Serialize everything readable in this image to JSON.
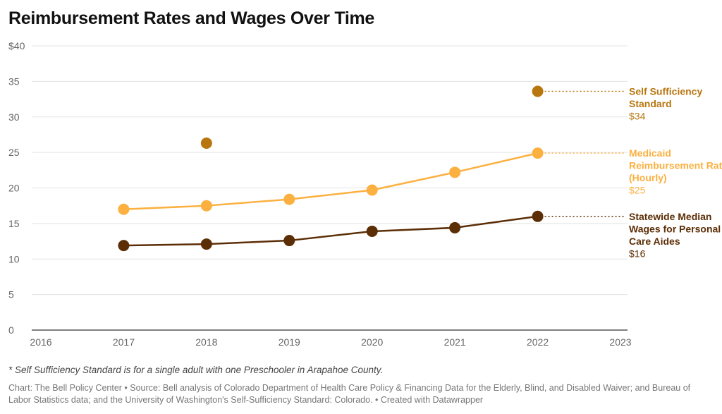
{
  "title": "Reimbursement Rates and Wages Over Time",
  "footnote": "* Self Sufficiency Standard is for a single adult with one Preschooler in Arapahoe County.",
  "source": "Chart: The Bell Policy Center • Source: Bell analysis of Colorado Department of Health Care Policy & Financing Data for the Elderly, Blind, and Disabled Waiver; and Bureau of Labor Statistics data; and the University of Washington's Self-Sufficiency Standard: Colorado.  • Created with Datawrapper",
  "chart_data": {
    "type": "line",
    "xlim": [
      2016,
      2023
    ],
    "ylim": [
      0,
      40
    ],
    "x_ticks": [
      "2016",
      "2017",
      "2018",
      "2019",
      "2020",
      "2021",
      "2022",
      "2023"
    ],
    "y_ticks": [
      "$40",
      "35",
      "30",
      "25",
      "20",
      "15",
      "10",
      "5",
      "0"
    ],
    "grid": true,
    "series": [
      {
        "name": "Self Sufficiency Standard",
        "value_label": "$34",
        "color": "#b8760f",
        "connected": false,
        "points": [
          {
            "x": 2018,
            "y": 26.3
          },
          {
            "x": 2022,
            "y": 33.6
          }
        ]
      },
      {
        "name": "Medicaid Reimbursement Rate (Hourly)",
        "value_label": "$25",
        "color": "#fbb040",
        "connected": true,
        "points": [
          {
            "x": 2017,
            "y": 17.0
          },
          {
            "x": 2018,
            "y": 17.5
          },
          {
            "x": 2019,
            "y": 18.4
          },
          {
            "x": 2020,
            "y": 19.7
          },
          {
            "x": 2021,
            "y": 22.2
          },
          {
            "x": 2022,
            "y": 24.9
          }
        ]
      },
      {
        "name": "Statewide Median Wages for Personal Care Aides",
        "value_label": "$16",
        "color": "#5c2e06",
        "connected": true,
        "points": [
          {
            "x": 2017,
            "y": 11.9
          },
          {
            "x": 2018,
            "y": 12.1
          },
          {
            "x": 2019,
            "y": 12.6
          },
          {
            "x": 2020,
            "y": 13.9
          },
          {
            "x": 2021,
            "y": 14.4
          },
          {
            "x": 2022,
            "y": 16.0
          }
        ]
      }
    ]
  }
}
